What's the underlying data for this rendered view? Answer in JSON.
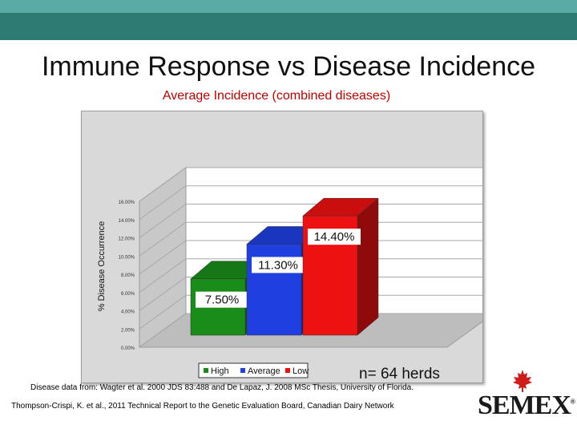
{
  "slide": {
    "title": "Immune Response vs Disease Incidence",
    "footnote_line1": "Disease data from:  Wagter et al. 2000 JDS 83:488 and De Lapaz, J. 2008 MSc Thesis, University of Florida.",
    "footnote_line2": "Thompson-Crispi, K. et al., 2011  Technical Report to the Genetic Evaluation Board,  Canadian Dairy Network",
    "logo_text": "SEMEX",
    "logo_mark": "®"
  },
  "colors": {
    "band_light": "#5aaaa6",
    "band_dark": "#2e7b73",
    "subtitle": "#c00000"
  },
  "icons": {
    "logo_icon": "maple-leaf-icon"
  },
  "chart_data": {
    "type": "bar",
    "title": "Average Incidence (combined diseases)",
    "ylabel": "% Disease Occurrence",
    "xlabel": "",
    "ylim": [
      0,
      16
    ],
    "yticks": [
      "0.00%",
      "2.00%",
      "4.00%",
      "6.00%",
      "8.00%",
      "10.00%",
      "12.00%",
      "14.00%",
      "16.00%"
    ],
    "categories": [
      "High",
      "Average",
      "Low"
    ],
    "values": [
      7.5,
      11.3,
      14.4
    ],
    "data_labels": [
      "7.50%",
      "11.30%",
      "14.40%"
    ],
    "colors": [
      "#1a8c1a",
      "#1f3fe0",
      "#ee1111"
    ],
    "legend": [
      "High",
      "Average",
      "Low"
    ],
    "legend_position": "bottom",
    "annotation": "n= 64 herds",
    "style": "3d"
  }
}
